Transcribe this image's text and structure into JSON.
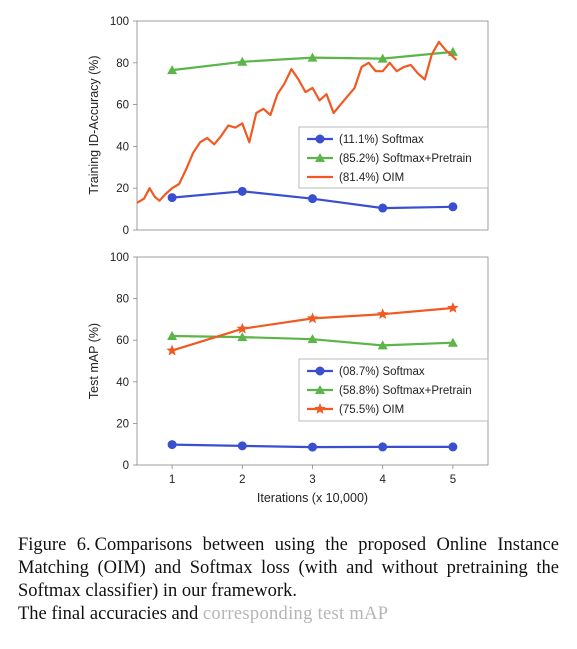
{
  "chart_data": [
    {
      "type": "line",
      "title": "",
      "xlabel": "",
      "ylabel": "Training ID-Accuracy (%)",
      "xlim": [
        0.5,
        5.5
      ],
      "ylim": [
        0,
        100
      ],
      "yticks": [
        "0",
        "20",
        "40",
        "60",
        "80",
        "100"
      ],
      "grid": false,
      "legend_position": "center-right",
      "series": [
        {
          "name": "(11.1%) Softmax",
          "color": "#3a4fd0",
          "marker": "circle",
          "x": [
            1,
            2,
            3,
            4,
            5
          ],
          "y": [
            15.5,
            18.5,
            15,
            10.5,
            11.1
          ]
        },
        {
          "name": "(85.2%) Softmax+Pretrain",
          "color": "#5bb548",
          "marker": "triangle",
          "x": [
            1,
            2,
            3,
            4,
            5
          ],
          "y": [
            76.5,
            80.5,
            82.5,
            82,
            85.2
          ]
        },
        {
          "name": "(81.4%) OIM",
          "color": "#f05a22",
          "marker": "none",
          "x": [
            0.5,
            0.6,
            0.68,
            0.75,
            0.82,
            0.9,
            1.0,
            1.1,
            1.2,
            1.3,
            1.4,
            1.5,
            1.6,
            1.7,
            1.8,
            1.9,
            2.0,
            2.1,
            2.2,
            2.3,
            2.4,
            2.5,
            2.6,
            2.7,
            2.8,
            2.9,
            3.0,
            3.1,
            3.2,
            3.3,
            3.4,
            3.5,
            3.6,
            3.7,
            3.8,
            3.9,
            4.0,
            4.1,
            4.2,
            4.3,
            4.4,
            4.5,
            4.6,
            4.7,
            4.8,
            4.9,
            5.0,
            5.05
          ],
          "y": [
            13,
            15,
            20,
            16,
            14,
            17,
            20,
            22,
            29,
            37,
            42,
            44,
            41,
            45,
            50,
            49,
            51,
            42,
            56,
            58,
            55,
            65,
            70,
            77,
            72,
            66,
            68,
            62,
            65,
            56,
            60,
            64,
            68,
            78,
            80,
            76,
            76,
            80,
            76,
            78,
            79,
            75,
            72,
            84,
            90,
            86,
            83,
            81.4
          ]
        }
      ]
    },
    {
      "type": "line",
      "title": "",
      "xlabel": "Iterations (x 10,000)",
      "ylabel": "Test mAP (%)",
      "xlim": [
        0.5,
        5.5
      ],
      "ylim": [
        0,
        100
      ],
      "categories": [
        "1",
        "2",
        "3",
        "4",
        "5"
      ],
      "yticks": [
        "0",
        "20",
        "40",
        "60",
        "80",
        "100"
      ],
      "grid": false,
      "legend_position": "bottom-right",
      "series": [
        {
          "name": "(08.7%) Softmax",
          "color": "#3a4fd0",
          "marker": "circle",
          "x": [
            1,
            2,
            3,
            4,
            5
          ],
          "y": [
            9.8,
            9.2,
            8.6,
            8.7,
            8.7
          ]
        },
        {
          "name": "(58.8%) Softmax+Pretrain",
          "color": "#5bb548",
          "marker": "triangle",
          "x": [
            1,
            2,
            3,
            4,
            5
          ],
          "y": [
            62,
            61.5,
            60.5,
            57.5,
            58.8
          ]
        },
        {
          "name": "(75.5%) OIM",
          "color": "#f05a22",
          "marker": "star",
          "x": [
            1,
            2,
            3,
            4,
            5
          ],
          "y": [
            55,
            65.5,
            70.5,
            72.5,
            75.5
          ]
        }
      ]
    }
  ],
  "caption": {
    "label": "Figure 6.",
    "text": "Comparisons between using the proposed Online Instance Matching (OIM) and Softmax loss (with and without pretraining the Softmax classifier) in our framework.",
    "tail_visible": "The final accuracies and",
    "tail_faded": "corresponding test mAP"
  }
}
